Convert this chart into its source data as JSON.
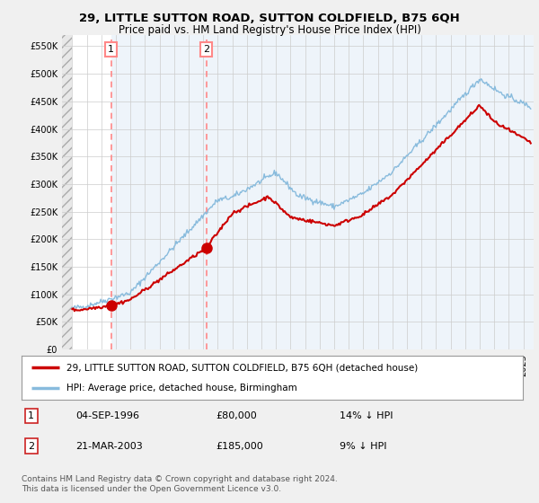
{
  "title": "29, LITTLE SUTTON ROAD, SUTTON COLDFIELD, B75 6QH",
  "subtitle": "Price paid vs. HM Land Registry's House Price Index (HPI)",
  "ylim": [
    0,
    570000
  ],
  "yticks": [
    0,
    50000,
    100000,
    150000,
    200000,
    250000,
    300000,
    350000,
    400000,
    450000,
    500000,
    550000
  ],
  "ytick_labels": [
    "£0",
    "£50K",
    "£100K",
    "£150K",
    "£200K",
    "£250K",
    "£300K",
    "£350K",
    "£400K",
    "£450K",
    "£500K",
    "£550K"
  ],
  "xlim_start": 1993.3,
  "xlim_end": 2025.7,
  "hatch_end": 1994.0,
  "background_color": "#f0f0f0",
  "plot_bg_color": "#ffffff",
  "grid_color": "#cccccc",
  "sale1_date": 1996.67,
  "sale1_price": 80000,
  "sale2_date": 2003.22,
  "sale2_price": 185000,
  "red_line_color": "#cc0000",
  "blue_line_color": "#88bbdd",
  "dashed_line_color": "#ff8888",
  "marker_color": "#cc0000",
  "legend_label_red": "29, LITTLE SUTTON ROAD, SUTTON COLDFIELD, B75 6QH (detached house)",
  "legend_label_blue": "HPI: Average price, detached house, Birmingham",
  "table_row1": [
    "1",
    "04-SEP-1996",
    "£80,000",
    "14% ↓ HPI"
  ],
  "table_row2": [
    "2",
    "21-MAR-2003",
    "£185,000",
    "9% ↓ HPI"
  ],
  "footnote": "Contains HM Land Registry data © Crown copyright and database right 2024.\nThis data is licensed under the Open Government Licence v3.0.",
  "title_fontsize": 9.5,
  "subtitle_fontsize": 8.5,
  "tick_fontsize": 7,
  "legend_fontsize": 7.5,
  "table_fontsize": 8,
  "footnote_fontsize": 6.5
}
